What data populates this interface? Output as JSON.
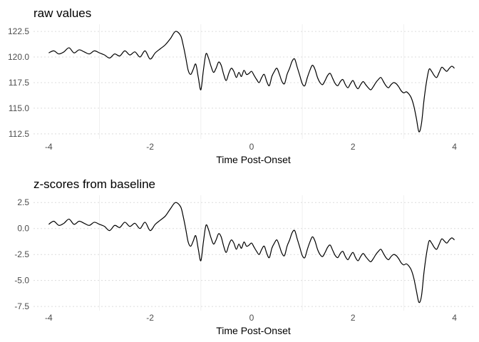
{
  "chart_data": [
    {
      "type": "line",
      "title": "raw values",
      "xlabel": "Time Post-Onset",
      "ylabel": "",
      "xlim": [
        -4.3,
        4.4
      ],
      "ylim": [
        112.0,
        123.2
      ],
      "xticks": [
        -4,
        -2,
        0,
        2,
        4
      ],
      "xtick_labels": [
        "-4",
        "-2",
        "0",
        "2",
        "4"
      ],
      "yticks": [
        112.5,
        115.0,
        117.5,
        120.0,
        122.5
      ],
      "ytick_labels": [
        "112.5",
        "115.0",
        "117.5",
        "120.0",
        "122.5"
      ],
      "grid": true,
      "series": [
        {
          "x": [
            -4.0,
            -3.9,
            -3.8,
            -3.7,
            -3.6,
            -3.5,
            -3.4,
            -3.3,
            -3.2,
            -3.1,
            -3.0,
            -2.9,
            -2.8,
            -2.7,
            -2.6,
            -2.5,
            -2.4,
            -2.3,
            -2.2,
            -2.1,
            -2.0,
            -1.9,
            -1.8,
            -1.7,
            -1.6,
            -1.5,
            -1.4,
            -1.35,
            -1.3,
            -1.25,
            -1.2,
            -1.15,
            -1.1,
            -1.05,
            -1.0,
            -0.95,
            -0.9,
            -0.85,
            -0.8,
            -0.75,
            -0.7,
            -0.65,
            -0.6,
            -0.55,
            -0.5,
            -0.45,
            -0.4,
            -0.35,
            -0.3,
            -0.25,
            -0.2,
            -0.15,
            -0.1,
            -0.05,
            0.0,
            0.05,
            0.1,
            0.15,
            0.2,
            0.25,
            0.3,
            0.35,
            0.4,
            0.45,
            0.5,
            0.55,
            0.6,
            0.65,
            0.7,
            0.75,
            0.8,
            0.85,
            0.9,
            0.95,
            1.0,
            1.05,
            1.1,
            1.15,
            1.2,
            1.25,
            1.3,
            1.35,
            1.4,
            1.45,
            1.5,
            1.55,
            1.6,
            1.65,
            1.7,
            1.75,
            1.8,
            1.85,
            1.9,
            1.95,
            2.0,
            2.05,
            2.1,
            2.15,
            2.2,
            2.25,
            2.3,
            2.35,
            2.4,
            2.45,
            2.5,
            2.55,
            2.6,
            2.65,
            2.7,
            2.75,
            2.8,
            2.85,
            2.9,
            2.95,
            3.0,
            3.05,
            3.1,
            3.15,
            3.2,
            3.25,
            3.3,
            3.35,
            3.4,
            3.45,
            3.5,
            3.55,
            3.6,
            3.65,
            3.7,
            3.75,
            3.8,
            3.85,
            3.9,
            3.95,
            4.0
          ],
          "y": [
            120.4,
            120.6,
            120.3,
            120.5,
            120.9,
            120.4,
            120.7,
            120.5,
            120.3,
            120.6,
            120.4,
            120.2,
            119.9,
            120.3,
            120.1,
            120.6,
            120.2,
            120.5,
            120.0,
            120.6,
            119.8,
            120.4,
            120.8,
            121.2,
            121.8,
            122.5,
            122.1,
            121.2,
            120.0,
            118.7,
            118.3,
            118.8,
            119.3,
            118.0,
            116.8,
            118.7,
            120.3,
            119.9,
            119.1,
            118.5,
            118.9,
            119.5,
            119.2,
            118.3,
            117.7,
            118.4,
            118.9,
            118.6,
            118.0,
            118.5,
            118.1,
            118.7,
            118.3,
            118.4,
            118.6,
            118.2,
            117.8,
            117.5,
            118.0,
            118.3,
            117.6,
            117.2,
            118.1,
            118.6,
            118.9,
            118.3,
            117.6,
            117.4,
            118.3,
            118.9,
            119.6,
            119.8,
            119.0,
            118.2,
            117.4,
            117.2,
            118.0,
            118.7,
            119.2,
            118.8,
            118.0,
            117.5,
            117.3,
            117.7,
            118.2,
            118.4,
            117.9,
            117.4,
            117.2,
            117.6,
            117.8,
            117.3,
            117.0,
            117.4,
            117.7,
            117.2,
            116.9,
            117.3,
            117.6,
            117.3,
            117.0,
            116.8,
            117.1,
            117.5,
            117.8,
            118.0,
            117.6,
            117.2,
            117.0,
            117.3,
            117.5,
            117.4,
            117.1,
            116.7,
            116.5,
            116.6,
            116.4,
            116.0,
            115.2,
            114.0,
            112.7,
            113.5,
            115.8,
            117.6,
            118.8,
            118.6,
            118.2,
            118.0,
            118.5,
            119.0,
            118.8,
            118.6,
            118.9,
            119.1,
            118.9
          ]
        }
      ]
    },
    {
      "type": "line",
      "title": "z-scores from baseline",
      "xlabel": "Time Post-Onset",
      "ylabel": "",
      "xlim": [
        -4.3,
        4.4
      ],
      "ylim": [
        -7.9,
        3.2
      ],
      "xticks": [
        -4,
        -2,
        0,
        2,
        4
      ],
      "xtick_labels": [
        "-4",
        "-2",
        "0",
        "2",
        "4"
      ],
      "yticks": [
        -7.5,
        -5.0,
        -2.5,
        0.0,
        2.5
      ],
      "ytick_labels": [
        "-7.5",
        "-5.0",
        "-2.5",
        "0.0",
        "2.5"
      ],
      "grid": true,
      "series": [
        {
          "x": [
            -4.0,
            -3.9,
            -3.8,
            -3.7,
            -3.6,
            -3.5,
            -3.4,
            -3.3,
            -3.2,
            -3.1,
            -3.0,
            -2.9,
            -2.8,
            -2.7,
            -2.6,
            -2.5,
            -2.4,
            -2.3,
            -2.2,
            -2.1,
            -2.0,
            -1.9,
            -1.8,
            -1.7,
            -1.6,
            -1.5,
            -1.4,
            -1.35,
            -1.3,
            -1.25,
            -1.2,
            -1.15,
            -1.1,
            -1.05,
            -1.0,
            -0.95,
            -0.9,
            -0.85,
            -0.8,
            -0.75,
            -0.7,
            -0.65,
            -0.6,
            -0.55,
            -0.5,
            -0.45,
            -0.4,
            -0.35,
            -0.3,
            -0.25,
            -0.2,
            -0.15,
            -0.1,
            -0.05,
            0.0,
            0.05,
            0.1,
            0.15,
            0.2,
            0.25,
            0.3,
            0.35,
            0.4,
            0.45,
            0.5,
            0.55,
            0.6,
            0.65,
            0.7,
            0.75,
            0.8,
            0.85,
            0.9,
            0.95,
            1.0,
            1.05,
            1.1,
            1.15,
            1.2,
            1.25,
            1.3,
            1.35,
            1.4,
            1.45,
            1.5,
            1.55,
            1.6,
            1.65,
            1.7,
            1.75,
            1.8,
            1.85,
            1.9,
            1.95,
            2.0,
            2.05,
            2.1,
            2.15,
            2.2,
            2.25,
            2.3,
            2.35,
            2.4,
            2.45,
            2.5,
            2.55,
            2.6,
            2.65,
            2.7,
            2.75,
            2.8,
            2.85,
            2.9,
            2.95,
            3.0,
            3.05,
            3.1,
            3.15,
            3.2,
            3.25,
            3.3,
            3.35,
            3.4,
            3.45,
            3.5,
            3.55,
            3.6,
            3.65,
            3.7,
            3.75,
            3.8,
            3.85,
            3.9,
            3.95,
            4.0
          ],
          "y": [
            0.4,
            0.7,
            0.3,
            0.5,
            0.9,
            0.4,
            0.7,
            0.5,
            0.3,
            0.6,
            0.4,
            0.2,
            -0.2,
            0.3,
            0.1,
            0.6,
            0.2,
            0.5,
            0.0,
            0.6,
            -0.2,
            0.4,
            0.8,
            1.2,
            1.9,
            2.5,
            2.1,
            1.2,
            0.0,
            -1.3,
            -1.7,
            -1.2,
            -0.7,
            -2.0,
            -3.1,
            -1.3,
            0.3,
            -0.1,
            -0.9,
            -1.5,
            -1.1,
            -0.5,
            -0.8,
            -1.7,
            -2.3,
            -1.6,
            -1.1,
            -1.4,
            -2.0,
            -1.5,
            -1.9,
            -1.3,
            -1.7,
            -1.6,
            -1.4,
            -1.8,
            -2.2,
            -2.5,
            -2.0,
            -1.7,
            -2.4,
            -2.8,
            -1.9,
            -1.4,
            -1.1,
            -1.7,
            -2.4,
            -2.6,
            -1.7,
            -1.1,
            -0.4,
            -0.2,
            -1.0,
            -1.8,
            -2.6,
            -2.8,
            -2.0,
            -1.3,
            -0.8,
            -1.2,
            -2.0,
            -2.5,
            -2.7,
            -2.3,
            -1.8,
            -1.6,
            -2.1,
            -2.6,
            -2.8,
            -2.4,
            -2.2,
            -2.7,
            -3.0,
            -2.6,
            -2.3,
            -2.8,
            -3.1,
            -2.7,
            -2.4,
            -2.7,
            -3.0,
            -3.2,
            -2.9,
            -2.5,
            -2.2,
            -2.0,
            -2.4,
            -2.8,
            -3.0,
            -2.7,
            -2.5,
            -2.6,
            -2.9,
            -3.3,
            -3.5,
            -3.4,
            -3.6,
            -4.0,
            -4.8,
            -6.0,
            -7.1,
            -6.5,
            -4.2,
            -2.4,
            -1.2,
            -1.4,
            -1.8,
            -2.0,
            -1.5,
            -1.0,
            -1.2,
            -1.4,
            -1.1,
            -0.9,
            -1.1
          ]
        }
      ]
    }
  ]
}
